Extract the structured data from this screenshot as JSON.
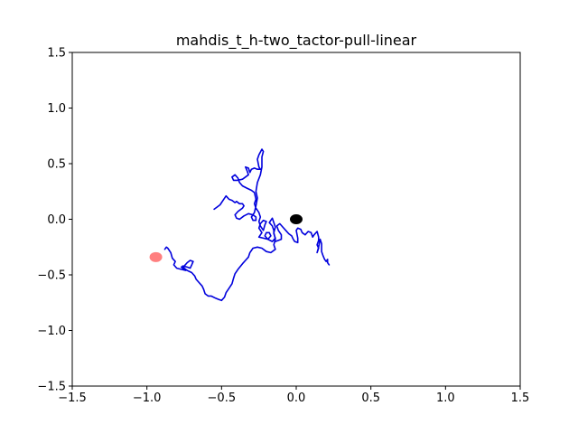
{
  "chart_data": {
    "type": "line",
    "title": "mahdis_t_h-two_tactor-pull-linear",
    "xlabel": "",
    "ylabel": "",
    "xlim": [
      -1.5,
      1.5
    ],
    "ylim": [
      -1.5,
      1.5
    ],
    "xticks": [
      -1.5,
      -1.0,
      -0.5,
      0.0,
      0.5,
      1.0,
      1.5
    ],
    "yticks": [
      -1.5,
      -1.0,
      -0.5,
      0.0,
      0.5,
      1.0,
      1.5
    ],
    "xtick_labels": [
      "−1.5",
      "−1.0",
      "−0.5",
      "0.0",
      "0.5",
      "1.0",
      "1.5"
    ],
    "ytick_labels": [
      "−1.5",
      "−1.0",
      "−0.5",
      "0.0",
      "0.5",
      "1.0",
      "1.5"
    ],
    "grid": false,
    "legend": "none",
    "series": [
      {
        "color": "#0000dd",
        "points": [
          [
            -0.55,
            0.09
          ],
          [
            -0.53,
            0.11
          ],
          [
            -0.51,
            0.13
          ],
          [
            -0.49,
            0.17
          ],
          [
            -0.47,
            0.21
          ],
          [
            -0.45,
            0.18
          ],
          [
            -0.43,
            0.17
          ],
          [
            -0.41,
            0.15
          ],
          [
            -0.4,
            0.16
          ],
          [
            -0.38,
            0.14
          ],
          [
            -0.36,
            0.14
          ],
          [
            -0.35,
            0.12
          ],
          [
            -0.36,
            0.1
          ],
          [
            -0.39,
            0.07
          ],
          [
            -0.41,
            0.04
          ],
          [
            -0.4,
            0.01
          ],
          [
            -0.38,
            0.0
          ],
          [
            -0.35,
            0.03
          ],
          [
            -0.32,
            0.05
          ],
          [
            -0.29,
            0.04
          ],
          [
            -0.27,
            0.02
          ],
          [
            -0.27,
            -0.01
          ],
          [
            -0.29,
            -0.01
          ],
          [
            -0.3,
            0.02
          ],
          [
            -0.28,
            0.06
          ],
          [
            -0.27,
            0.12
          ],
          [
            -0.26,
            0.19
          ],
          [
            -0.27,
            0.25
          ],
          [
            -0.26,
            0.33
          ],
          [
            -0.24,
            0.4
          ],
          [
            -0.23,
            0.47
          ],
          [
            -0.23,
            0.56
          ],
          [
            -0.22,
            0.61
          ],
          [
            -0.23,
            0.63
          ],
          [
            -0.25,
            0.58
          ],
          [
            -0.26,
            0.54
          ],
          [
            -0.25,
            0.47
          ],
          [
            -0.24,
            0.45
          ],
          [
            -0.26,
            0.45
          ],
          [
            -0.28,
            0.46
          ],
          [
            -0.3,
            0.45
          ],
          [
            -0.31,
            0.42
          ],
          [
            -0.32,
            0.46
          ],
          [
            -0.34,
            0.47
          ],
          [
            -0.33,
            0.44
          ],
          [
            -0.32,
            0.4
          ],
          [
            -0.34,
            0.38
          ],
          [
            -0.36,
            0.36
          ],
          [
            -0.39,
            0.35
          ],
          [
            -0.42,
            0.35
          ],
          [
            -0.43,
            0.38
          ],
          [
            -0.41,
            0.4
          ],
          [
            -0.39,
            0.37
          ],
          [
            -0.38,
            0.33
          ],
          [
            -0.36,
            0.3
          ],
          [
            -0.33,
            0.28
          ],
          [
            -0.3,
            0.26
          ],
          [
            -0.28,
            0.24
          ],
          [
            -0.27,
            0.18
          ],
          [
            -0.28,
            0.14
          ],
          [
            -0.27,
            0.1
          ],
          [
            -0.25,
            0.06
          ],
          [
            -0.24,
            0.02
          ],
          [
            -0.25,
            -0.02
          ],
          [
            -0.24,
            -0.06
          ],
          [
            -0.22,
            -0.1
          ],
          [
            -0.21,
            -0.05
          ],
          [
            -0.2,
            -0.02
          ],
          [
            -0.22,
            -0.01
          ],
          [
            -0.24,
            -0.04
          ],
          [
            -0.25,
            -0.08
          ],
          [
            -0.23,
            -0.12
          ],
          [
            -0.25,
            -0.16
          ],
          [
            -0.22,
            -0.17
          ],
          [
            -0.19,
            -0.18
          ],
          [
            -0.17,
            -0.15
          ],
          [
            -0.18,
            -0.12
          ],
          [
            -0.2,
            -0.12
          ],
          [
            -0.21,
            -0.15
          ],
          [
            -0.19,
            -0.18
          ],
          [
            -0.16,
            -0.2
          ],
          [
            -0.14,
            -0.17
          ],
          [
            -0.15,
            -0.13
          ],
          [
            -0.15,
            -0.1
          ],
          [
            -0.16,
            -0.06
          ],
          [
            -0.18,
            -0.03
          ],
          [
            -0.16,
            0.01
          ],
          [
            -0.15,
            -0.03
          ],
          [
            -0.14,
            -0.07
          ],
          [
            -0.15,
            -0.12
          ],
          [
            -0.14,
            -0.18
          ],
          [
            -0.15,
            -0.23
          ],
          [
            -0.14,
            -0.27
          ],
          [
            -0.17,
            -0.3
          ],
          [
            -0.2,
            -0.29
          ],
          [
            -0.23,
            -0.26
          ],
          [
            -0.26,
            -0.25
          ],
          [
            -0.29,
            -0.26
          ],
          [
            -0.31,
            -0.3
          ],
          [
            -0.32,
            -0.34
          ],
          [
            -0.34,
            -0.37
          ],
          [
            -0.36,
            -0.4
          ],
          [
            -0.39,
            -0.45
          ],
          [
            -0.41,
            -0.49
          ],
          [
            -0.42,
            -0.53
          ],
          [
            -0.43,
            -0.58
          ],
          [
            -0.45,
            -0.62
          ],
          [
            -0.47,
            -0.66
          ],
          [
            -0.48,
            -0.7
          ],
          [
            -0.5,
            -0.73
          ],
          [
            -0.52,
            -0.72
          ],
          [
            -0.54,
            -0.71
          ],
          [
            -0.57,
            -0.69
          ],
          [
            -0.59,
            -0.69
          ],
          [
            -0.61,
            -0.67
          ],
          [
            -0.62,
            -0.63
          ],
          [
            -0.63,
            -0.6
          ],
          [
            -0.65,
            -0.57
          ],
          [
            -0.67,
            -0.54
          ],
          [
            -0.68,
            -0.51
          ],
          [
            -0.7,
            -0.48
          ],
          [
            -0.73,
            -0.46
          ],
          [
            -0.75,
            -0.44
          ],
          [
            -0.76,
            -0.42
          ],
          [
            -0.73,
            -0.43
          ],
          [
            -0.71,
            -0.44
          ],
          [
            -0.7,
            -0.41
          ],
          [
            -0.69,
            -0.38
          ],
          [
            -0.71,
            -0.37
          ],
          [
            -0.73,
            -0.39
          ],
          [
            -0.75,
            -0.42
          ],
          [
            -0.77,
            -0.43
          ],
          [
            -0.74,
            -0.46
          ],
          [
            -0.77,
            -0.45
          ],
          [
            -0.8,
            -0.44
          ],
          [
            -0.82,
            -0.41
          ],
          [
            -0.81,
            -0.38
          ],
          [
            -0.83,
            -0.35
          ],
          [
            -0.84,
            -0.3
          ],
          [
            -0.86,
            -0.26
          ],
          [
            -0.87,
            -0.25
          ],
          [
            -0.88,
            -0.27
          ]
        ]
      },
      {
        "color": "#0000dd",
        "points": [
          [
            -0.14,
            -0.2
          ],
          [
            -0.12,
            -0.19
          ],
          [
            -0.1,
            -0.18
          ],
          [
            -0.1,
            -0.14
          ],
          [
            -0.12,
            -0.1
          ],
          [
            -0.13,
            -0.06
          ],
          [
            -0.11,
            -0.04
          ],
          [
            -0.09,
            -0.07
          ],
          [
            -0.07,
            -0.1
          ],
          [
            -0.05,
            -0.13
          ],
          [
            -0.03,
            -0.15
          ],
          [
            -0.02,
            -0.18
          ],
          [
            -0.01,
            -0.2
          ],
          [
            0.01,
            -0.21
          ],
          [
            0.01,
            -0.17
          ],
          [
            0.0,
            -0.1
          ],
          [
            0.01,
            -0.08
          ],
          [
            0.03,
            -0.09
          ],
          [
            0.04,
            -0.12
          ],
          [
            0.06,
            -0.14
          ],
          [
            0.08,
            -0.11
          ],
          [
            0.1,
            -0.12
          ],
          [
            0.11,
            -0.16
          ],
          [
            0.12,
            -0.14
          ],
          [
            0.14,
            -0.11
          ],
          [
            0.15,
            -0.16
          ],
          [
            0.15,
            -0.19
          ],
          [
            0.14,
            -0.23
          ],
          [
            0.15,
            -0.26
          ],
          [
            0.14,
            -0.3
          ],
          [
            0.15,
            -0.25
          ],
          [
            0.16,
            -0.18
          ],
          [
            0.17,
            -0.22
          ],
          [
            0.17,
            -0.29
          ],
          [
            0.18,
            -0.33
          ],
          [
            0.19,
            -0.36
          ],
          [
            0.2,
            -0.38
          ],
          [
            0.21,
            -0.36
          ],
          [
            0.21,
            -0.39
          ],
          [
            0.22,
            -0.41
          ]
        ]
      }
    ],
    "markers": [
      {
        "x": 0.0,
        "y": 0.0,
        "color": "#000000",
        "opacity": 1.0
      },
      {
        "x": -0.94,
        "y": -0.34,
        "color": "#ff0000",
        "opacity": 0.5
      }
    ]
  }
}
